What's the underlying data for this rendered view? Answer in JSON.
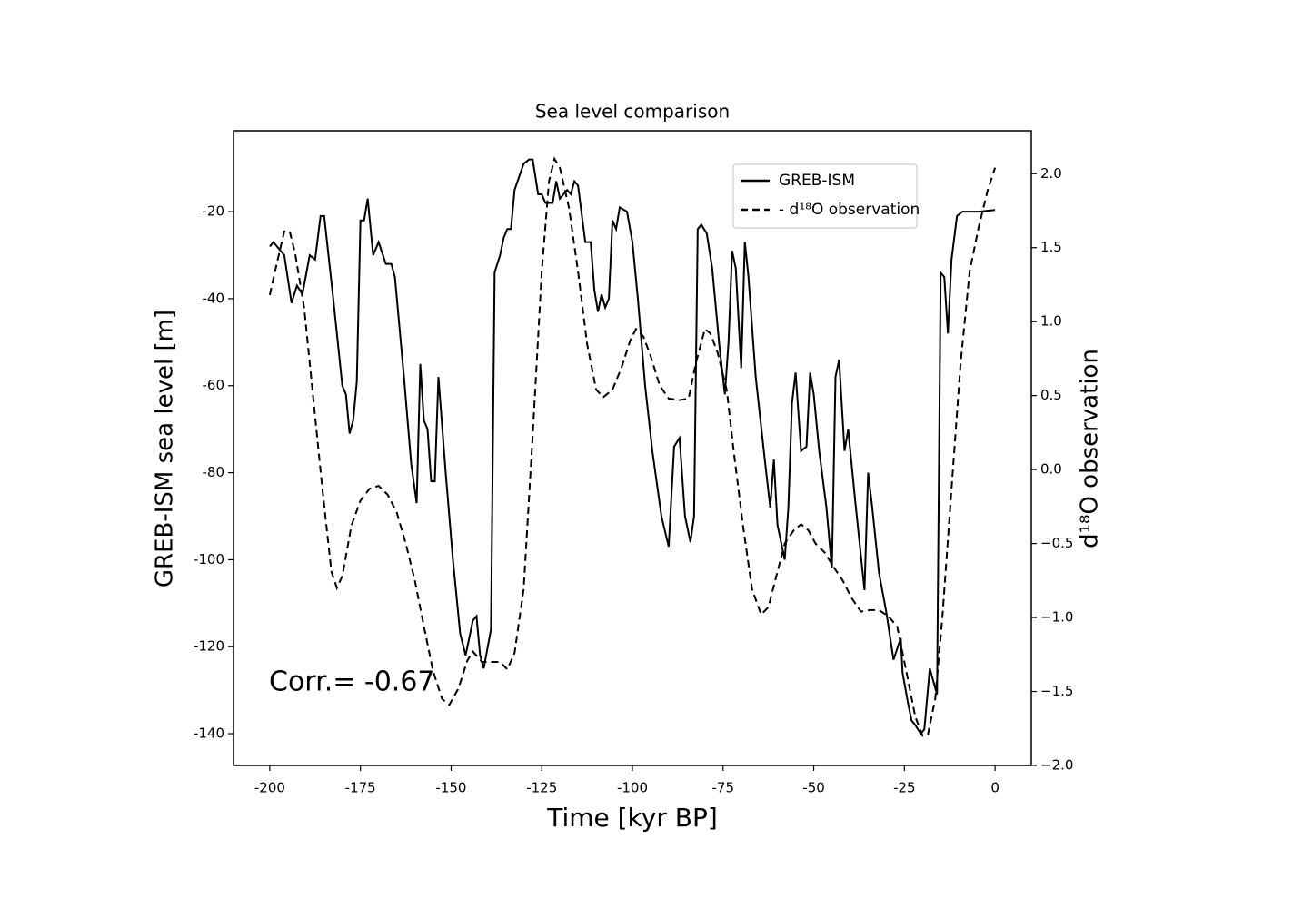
{
  "chart_data": {
    "type": "line",
    "title": "Sea level comparison",
    "xlabel": "Time [kyr BP]",
    "ylabel": "GREB-ISM sea level [m]",
    "y2label": "d¹⁸O observation",
    "annotation": "Corr.= -0.67",
    "xlim": [
      -210,
      10
    ],
    "xticks": [
      -200,
      -175,
      -150,
      -125,
      -100,
      -75,
      -50,
      -25,
      0
    ],
    "ylim": [
      -147.3,
      -1.4
    ],
    "yticks": [
      -140,
      -120,
      -100,
      -80,
      -60,
      -40,
      -20
    ],
    "y2lim": [
      -2.0,
      2.29
    ],
    "y2ticks": [
      {
        "value": -2,
        "label": "−2.0"
      },
      {
        "value": -1.5,
        "label": "−1.5"
      },
      {
        "value": -1,
        "label": "−1.0"
      },
      {
        "value": -0.5,
        "label": "−0.5"
      },
      {
        "value": 0,
        "label": "0.0"
      },
      {
        "value": 0.5,
        "label": "0.5"
      },
      {
        "value": 1,
        "label": "1.0"
      },
      {
        "value": 1.5,
        "label": "1.5"
      },
      {
        "value": 2,
        "label": "2.0"
      }
    ],
    "legend": "upper right",
    "series": [
      {
        "name": "GREB-ISM",
        "color": "#000000",
        "dash": "solid",
        "x": [
          -200,
          -199,
          -196,
          -194,
          -192.5,
          -191,
          -189,
          -187.5,
          -186,
          -185,
          -182.5,
          -180,
          -179,
          -178,
          -177,
          -176,
          -175,
          -174,
          -173,
          -171.5,
          -170,
          -168,
          -166.5,
          -165.5,
          -163,
          -161,
          -159.5,
          -158.5,
          -157.5,
          -156.5,
          -155.5,
          -154.5,
          -153.5,
          -151.5,
          -149.5,
          -147.5,
          -146,
          -145,
          -144,
          -143,
          -142,
          -141,
          -139,
          -138,
          -136.5,
          -135.5,
          -134.5,
          -133.5,
          -132.5,
          -130,
          -128.5,
          -127.5,
          -126,
          -125,
          -124,
          -122,
          -121,
          -120,
          -118,
          -117,
          -116,
          -115,
          -113,
          -111.5,
          -110.5,
          -109.5,
          -108.5,
          -107.5,
          -106.5,
          -105.5,
          -104.5,
          -103.5,
          -101.5,
          -100,
          -98.5,
          -96.5,
          -94.5,
          -92,
          -90,
          -88.5,
          -87,
          -85.5,
          -84,
          -83,
          -82,
          -81,
          -79.5,
          -78,
          -76,
          -74.5,
          -73.5,
          -72.5,
          -71.5,
          -70,
          -69,
          -68,
          -66,
          -63.5,
          -62,
          -61,
          -60,
          -58,
          -57,
          -56,
          -55,
          -53.5,
          -52,
          -51,
          -50,
          -48.5,
          -46.5,
          -45,
          -44,
          -43,
          -41.5,
          -40.5,
          -38.5,
          -36,
          -35,
          -34,
          -32,
          -30,
          -28,
          -26,
          -25.5,
          -24,
          -23,
          -22,
          -20.5,
          -19.5,
          -18,
          -16,
          -15,
          -14,
          -13,
          -12,
          -10.5,
          -9,
          -4.5,
          0
        ],
        "values": [
          -28,
          -27,
          -30,
          -41,
          -37,
          -39,
          -30,
          -31,
          -21,
          -21,
          -40,
          -60,
          -62,
          -71,
          -68,
          -59,
          -22,
          -22,
          -17,
          -30,
          -27,
          -32,
          -32,
          -35,
          -58,
          -78,
          -87,
          -55,
          -68,
          -70,
          -82,
          -82,
          -58,
          -80,
          -100,
          -117,
          -122,
          -118,
          -114,
          -113,
          -122,
          -125,
          -116,
          -34,
          -30,
          -26,
          -24,
          -24,
          -15,
          -9,
          -8,
          -8,
          -16,
          -16,
          -18,
          -18,
          -13,
          -17,
          -15,
          -16,
          -13,
          -14,
          -27,
          -27,
          -38,
          -43,
          -39,
          -42,
          -40,
          -22,
          -24,
          -19,
          -20,
          -27,
          -40,
          -60,
          -75,
          -90,
          -97,
          -74,
          -72,
          -90,
          -96,
          -90,
          -24,
          -23,
          -25,
          -33,
          -51,
          -62,
          -50,
          -29,
          -33,
          -56,
          -27,
          -35,
          -58,
          -77,
          -88,
          -77,
          -92,
          -100,
          -88,
          -64,
          -57,
          -75,
          -74,
          -57,
          -62,
          -75,
          -88,
          -102,
          -58,
          -54,
          -75,
          -70,
          -87,
          -107,
          -80,
          -87,
          -103,
          -112,
          -123,
          -118,
          -126,
          -133,
          -137,
          -138,
          -140,
          -139,
          -125,
          -131,
          -34,
          -35,
          -48,
          -31,
          -21,
          -20,
          -20,
          -19.6
        ]
      },
      {
        "name": "- d¹⁸O observation",
        "color": "#000000",
        "dash": "dashed",
        "axis": "y2",
        "x": [
          -200,
          -198,
          -196,
          -194.5,
          -193,
          -190.5,
          -188,
          -185.5,
          -183,
          -181.5,
          -180,
          -177.5,
          -175,
          -172.5,
          -170,
          -167.5,
          -165,
          -162.5,
          -160,
          -157.5,
          -155,
          -152.5,
          -150.5,
          -148,
          -145.5,
          -144,
          -141.5,
          -139,
          -136.5,
          -134.5,
          -132.5,
          -130,
          -127.5,
          -125,
          -123,
          -121.5,
          -120,
          -117.5,
          -115,
          -112.5,
          -110,
          -108,
          -105.5,
          -103,
          -100.5,
          -99,
          -97,
          -95,
          -92.5,
          -90,
          -87,
          -84.5,
          -82.5,
          -80,
          -78.5,
          -76.5,
          -74,
          -72,
          -69.5,
          -67,
          -64.5,
          -62.5,
          -60,
          -58,
          -55.5,
          -53.5,
          -51.5,
          -49.5,
          -47,
          -44.5,
          -42,
          -39.5,
          -37,
          -34.5,
          -32,
          -29.5,
          -27,
          -24.5,
          -22,
          -20,
          -18.5,
          -16.5,
          -14.5,
          -12,
          -9.5,
          -7,
          -4.5,
          -2,
          0
        ],
        "values": [
          1.18,
          1.4,
          1.61,
          1.61,
          1.46,
          1.09,
          0.48,
          -0.13,
          -0.69,
          -0.8,
          -0.72,
          -0.38,
          -0.21,
          -0.13,
          -0.11,
          -0.17,
          -0.29,
          -0.5,
          -0.75,
          -1.06,
          -1.36,
          -1.55,
          -1.59,
          -1.48,
          -1.29,
          -1.23,
          -1.3,
          -1.3,
          -1.3,
          -1.35,
          -1.24,
          -0.81,
          0.23,
          1.34,
          1.95,
          2.1,
          2.04,
          1.77,
          1.34,
          0.85,
          0.54,
          0.49,
          0.54,
          0.69,
          0.88,
          0.95,
          0.9,
          0.77,
          0.57,
          0.48,
          0.47,
          0.48,
          0.72,
          0.95,
          0.92,
          0.79,
          0.54,
          0.11,
          -0.38,
          -0.81,
          -0.98,
          -0.93,
          -0.69,
          -0.5,
          -0.41,
          -0.37,
          -0.41,
          -0.5,
          -0.56,
          -0.66,
          -0.75,
          -0.87,
          -0.96,
          -0.95,
          -0.95,
          -0.99,
          -1.06,
          -1.36,
          -1.67,
          -1.8,
          -1.79,
          -1.55,
          -0.99,
          -0.13,
          0.72,
          1.34,
          1.64,
          1.89,
          2.04
        ]
      }
    ]
  }
}
